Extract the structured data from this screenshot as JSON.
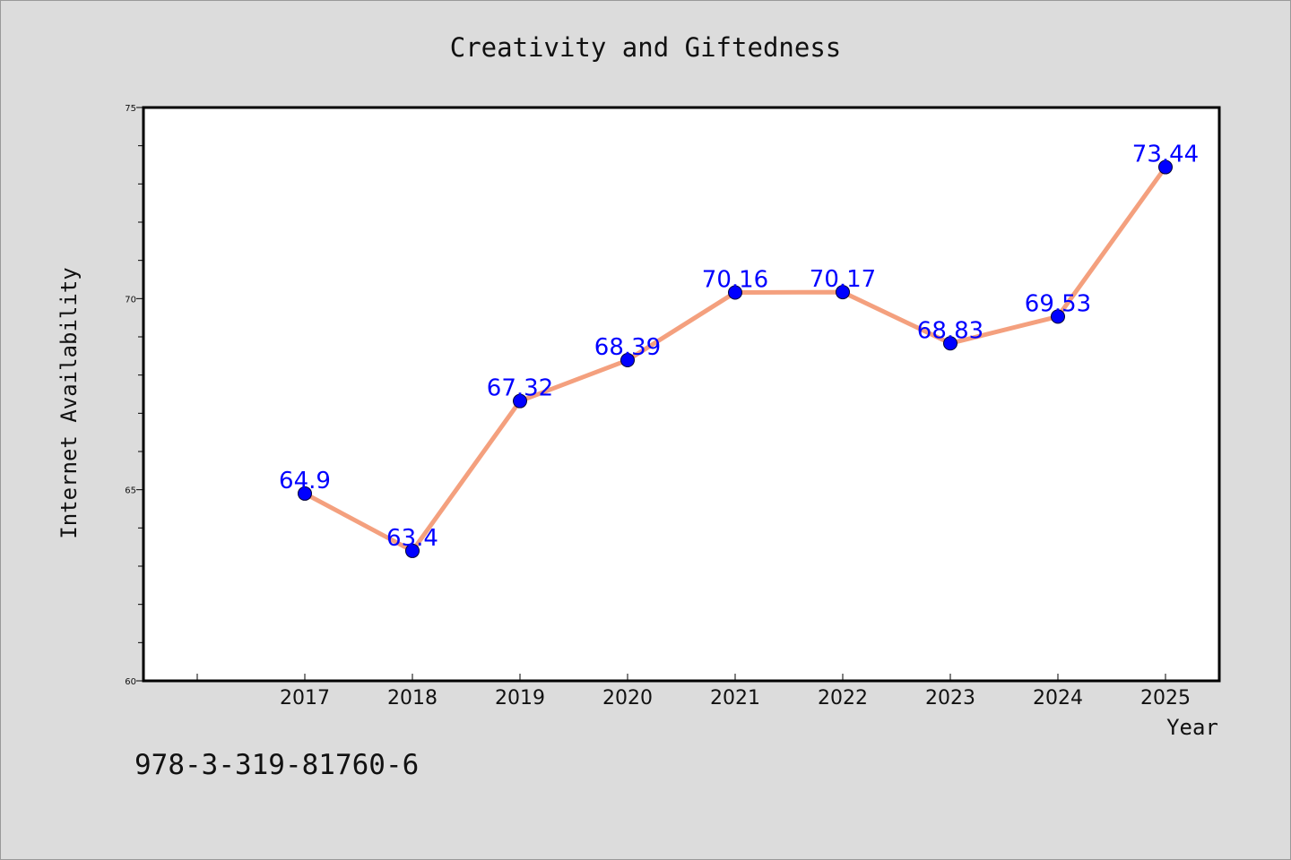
{
  "chart_data": {
    "type": "line",
    "title": "Creativity and Giftedness",
    "xlabel": "Year",
    "ylabel": "Internet Availability",
    "x": [
      "2017",
      "2018",
      "2019",
      "2020",
      "2021",
      "2022",
      "2023",
      "2024",
      "2025"
    ],
    "series": [
      {
        "values": [
          64.9,
          63.4,
          67.32,
          68.39,
          70.16,
          70.17,
          68.83,
          69.53,
          73.44
        ],
        "labels": [
          "64.9",
          "63.4",
          "67.32",
          "68.39",
          "70.16",
          "70.17",
          "68.83",
          "69.53",
          "73.44"
        ],
        "line_color": "#f4a07e",
        "marker_color": "#0000ff"
      }
    ],
    "ylim": [
      60,
      75
    ],
    "y_ticks": [
      "60",
      "65",
      "70",
      "75"
    ],
    "grid": false,
    "legend": "none"
  },
  "footer_text": "978-3-319-81760-6",
  "colors": {
    "background": "#dcdcdc",
    "plot_area": "#ffffff",
    "data_label": "#0000ff"
  }
}
